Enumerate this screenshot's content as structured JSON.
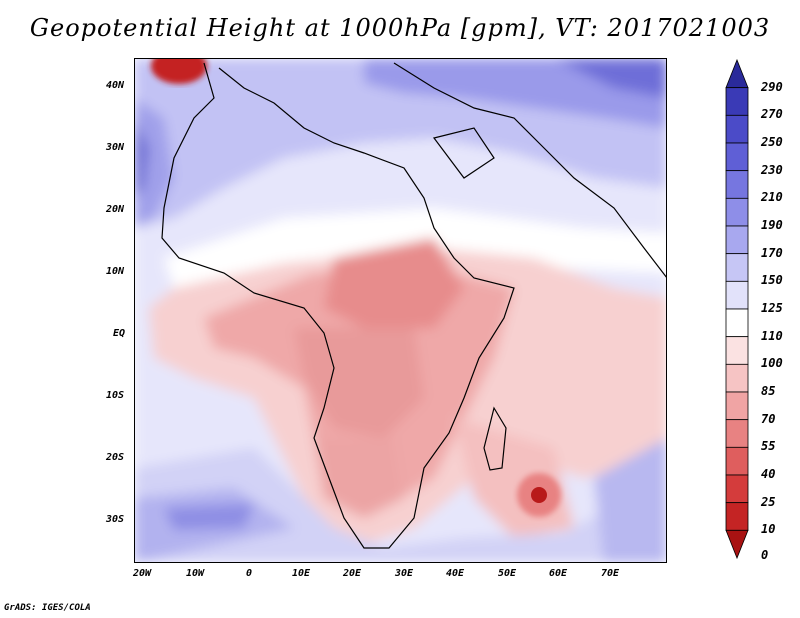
{
  "title": "Geopotential Height at 1000hPa [gpm], VT: 2017021003",
  "y_ticks": [
    "40N",
    "30N",
    "20N",
    "10N",
    "EQ",
    "10S",
    "20S",
    "30S"
  ],
  "x_ticks": [
    "20W",
    "10W",
    "0",
    "10E",
    "20E",
    "30E",
    "40E",
    "50E",
    "60E",
    "70E"
  ],
  "colorbar": {
    "levels": [
      "290",
      "270",
      "250",
      "230",
      "210",
      "190",
      "170",
      "150",
      "125",
      "110",
      "100",
      "85",
      "70",
      "55",
      "40",
      "25",
      "10",
      "0"
    ],
    "colors": [
      "#2a2a9a",
      "#3a3ab6",
      "#4b4bc8",
      "#5f5fd6",
      "#7676e0",
      "#8e8ee8",
      "#a8a8ef",
      "#c6c6f5",
      "#e2e2fa",
      "#ffffff",
      "#fbe2e2",
      "#f6c4c4",
      "#f0a4a4",
      "#e88282",
      "#df5e5e",
      "#d43c3c",
      "#c42424",
      "#a81212"
    ]
  },
  "credit": "GrADS: IGES/COLA"
}
